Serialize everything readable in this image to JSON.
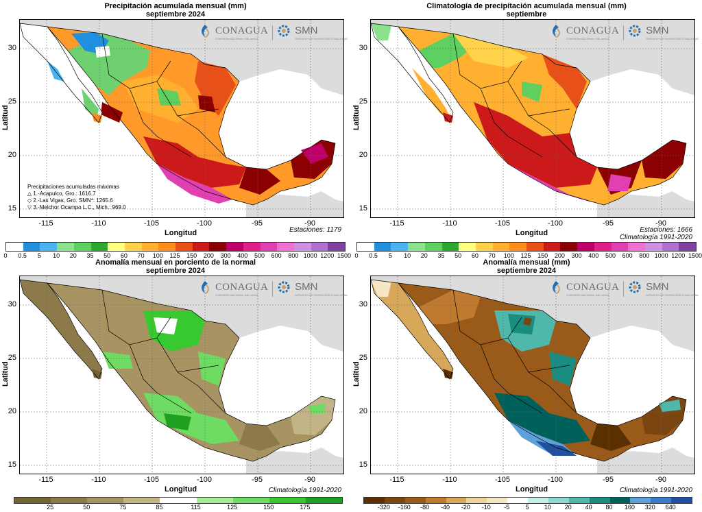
{
  "panels": [
    {
      "id": "precip",
      "title1": "Precipitación acumulada mensual (mm)",
      "title2": "septiembre 2024",
      "note1": "Estaciones: 1179",
      "note2": "",
      "legend_title": "Precipitaciones acumuladas máximas",
      "legend_items": [
        "1.-Acapulco, Gro.: 1616.7",
        "2.-Las Vigas, Gro. SMN*: 1265.6",
        "3.-Melchor Ocampo L.C., Mich.: 969.0"
      ]
    },
    {
      "id": "clim",
      "title1": "Climatología de precipitación acumulada mensual (mm)",
      "title2": "septiembre",
      "note1": "Estaciones: 1666",
      "note2": "Climatología 1991-2020"
    },
    {
      "id": "pct",
      "title1": "Anomalía mensual en porciento de la normal",
      "title2": "septiembre 2024",
      "note1": "Climatología 1991-2020",
      "note2": ""
    },
    {
      "id": "anom",
      "title1": "Anomalía mensual (mm)",
      "title2": "septiembre 2024",
      "note1": "Climatología 1991-2020",
      "note2": ""
    }
  ],
  "logos": {
    "conagua": "CONAGUA",
    "conagua_sub": "COMISIÓN NACIONAL DEL AGUA",
    "smn": "SMN",
    "smn_sub": "SERVICIO METEOROLÓGICO NACIONAL"
  },
  "axes": {
    "xlabel": "Longitud",
    "ylabel": "Latitud",
    "xticks": [
      "-115",
      "-110",
      "-105",
      "-100",
      "-95",
      "-90"
    ],
    "yticks": [
      "30",
      "25",
      "20",
      "15"
    ]
  },
  "colorbars": {
    "precip": {
      "labels": [
        "0",
        "0.5",
        "5",
        "10",
        "20",
        "35",
        "50",
        "60",
        "70",
        "100",
        "125",
        "150",
        "200",
        "300",
        "400",
        "500",
        "600",
        "800",
        "1000",
        "1200",
        "1500"
      ],
      "colors": [
        "#ffffff",
        "#1f8fe0",
        "#4cb3f0",
        "#8be28b",
        "#5fcf5f",
        "#2ea82e",
        "#ffff80",
        "#ffd24a",
        "#ffb030",
        "#ff8c1a",
        "#e8501a",
        "#cc1a1a",
        "#8b0000",
        "#c0006a",
        "#e0208a",
        "#e040b0",
        "#f070d0",
        "#d090e0",
        "#b070d0",
        "#8040a0"
      ]
    },
    "pct": {
      "labels": [
        "25",
        "50",
        "75",
        "85",
        "115",
        "125",
        "150",
        "175"
      ],
      "colors": [
        "#736438",
        "#8c7a4a",
        "#a89462",
        "#c2b486",
        "#ffffff",
        "#a8ec9a",
        "#6edc62",
        "#38c830",
        "#20a020"
      ]
    },
    "anom": {
      "labels": [
        "-320",
        "-160",
        "-80",
        "-40",
        "-20",
        "-10",
        "-5",
        "5",
        "10",
        "20",
        "40",
        "80",
        "160",
        "320",
        "640"
      ],
      "colors": [
        "#5a3000",
        "#7a4510",
        "#9a5a1a",
        "#c07a30",
        "#d8a85a",
        "#ecd39a",
        "#f5e6c4",
        "#ffffff",
        "#c8ece8",
        "#8fd6cc",
        "#4fb8aa",
        "#1a8c80",
        "#00605a",
        "#5ea0d8",
        "#3a7cc8",
        "#2050a0"
      ]
    }
  },
  "colors": {
    "land_gray": "#dcdcdc",
    "sea": "#ffffff",
    "border": "#000000"
  }
}
